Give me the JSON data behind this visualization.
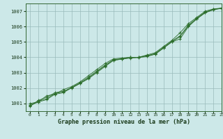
{
  "title": "Graphe pression niveau de la mer (hPa)",
  "xlim": [
    -0.5,
    23
  ],
  "ylim": [
    1000.5,
    1007.5
  ],
  "yticks": [
    1001,
    1002,
    1003,
    1004,
    1005,
    1006,
    1007
  ],
  "xticks": [
    0,
    1,
    2,
    3,
    4,
    5,
    6,
    7,
    8,
    9,
    10,
    11,
    12,
    13,
    14,
    15,
    16,
    17,
    18,
    19,
    20,
    21,
    22,
    23
  ],
  "bg_color": "#cce8e8",
  "grid_color": "#99bbbb",
  "line_color": "#2d6e2d",
  "marker_color": "#2d6e2d",
  "series": [
    [
      1001.0,
      1001.1,
      1001.5,
      1001.6,
      1001.9,
      1002.1,
      1002.4,
      1002.8,
      1003.2,
      1003.6,
      1003.9,
      1003.95,
      1004.0,
      1004.0,
      1004.1,
      1004.2,
      1004.6,
      1005.0,
      1005.2,
      1006.0,
      1006.5,
      1006.9,
      1007.1,
      1007.2
    ],
    [
      1000.8,
      1001.2,
      1001.4,
      1001.7,
      1001.8,
      1002.0,
      1002.3,
      1002.6,
      1003.0,
      1003.4,
      1003.8,
      1003.9,
      1004.0,
      1004.0,
      1004.15,
      1004.3,
      1004.7,
      1005.1,
      1005.6,
      1006.2,
      1006.6,
      1007.0,
      1007.15,
      1007.2
    ],
    [
      1000.9,
      1001.15,
      1001.3,
      1001.65,
      1001.75,
      1002.05,
      1002.35,
      1002.7,
      1003.1,
      1003.5,
      1003.85,
      1003.92,
      1004.0,
      1004.0,
      1004.1,
      1004.25,
      1004.65,
      1005.05,
      1005.4,
      1006.1,
      1006.55,
      1006.95,
      1007.12,
      1007.2
    ],
    [
      1000.85,
      1001.1,
      1001.25,
      1001.6,
      1001.7,
      1002.02,
      1002.3,
      1002.65,
      1003.05,
      1003.45,
      1003.8,
      1003.88,
      1003.95,
      1003.98,
      1004.05,
      1004.2,
      1004.6,
      1005.0,
      1005.35,
      1006.05,
      1006.5,
      1006.9,
      1007.1,
      1007.18
    ]
  ]
}
